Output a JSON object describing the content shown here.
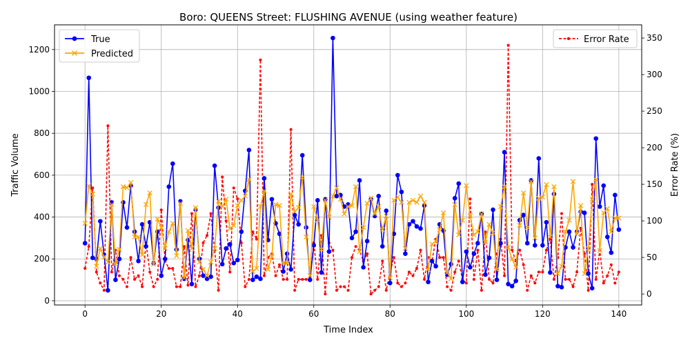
{
  "chart_data": {
    "type": "line",
    "title": "Boro: QUEENS Street: FLUSHING AVENUE (using weather feature)",
    "xlabel": "Time Index",
    "ylabel": "Traffic Volume",
    "y2label": "Error Rate (%)",
    "xlim": [
      -8,
      146
    ],
    "ylim": [
      -20,
      1318
    ],
    "y2lim": [
      -15,
      368
    ],
    "xticks": [
      0,
      20,
      40,
      60,
      80,
      100,
      120,
      140
    ],
    "yticks": [
      0,
      200,
      400,
      600,
      800,
      1000,
      1200
    ],
    "y2ticks": [
      0,
      50,
      100,
      150,
      200,
      250,
      300,
      350
    ],
    "grid": true,
    "legend_left_position": "upper-left",
    "legend_right_position": "upper-right",
    "series": [
      {
        "name": "True",
        "axis": "left",
        "color": "#0000ff",
        "marker": "circle",
        "values": [
          275,
          1065,
          205,
          200,
          380,
          220,
          50,
          470,
          100,
          200,
          470,
          350,
          550,
          330,
          190,
          365,
          260,
          375,
          180,
          330,
          120,
          200,
          545,
          655,
          245,
          475,
          105,
          290,
          80,
          435,
          200,
          120,
          105,
          115,
          645,
          445,
          175,
          250,
          270,
          180,
          195,
          330,
          525,
          720,
          100,
          115,
          105,
          585,
          290,
          485,
          370,
          320,
          140,
          225,
          150,
          410,
          365,
          695,
          350,
          100,
          265,
          480,
          135,
          485,
          235,
          1255,
          500,
          505,
          450,
          460,
          300,
          330,
          575,
          160,
          285,
          485,
          405,
          500,
          260,
          430,
          85,
          320,
          600,
          520,
          225,
          365,
          380,
          355,
          345,
          455,
          90,
          190,
          165,
          365,
          335,
          125,
          175,
          490,
          560,
          90,
          235,
          160,
          225,
          275,
          415,
          125,
          205,
          435,
          100,
          275,
          710,
          80,
          70,
          95,
          385,
          410,
          275,
          575,
          265,
          680,
          265,
          375,
          135,
          510,
          70,
          65,
          255,
          330,
          255,
          330,
          425,
          420,
          130,
          60,
          775,
          450,
          550,
          305,
          230,
          505,
          340
        ]
      },
      {
        "name": "Predicted",
        "axis": "left",
        "color": "#ffa500",
        "marker": "x",
        "values": [
          370,
          550,
          510,
          165,
          250,
          210,
          185,
          460,
          175,
          245,
          545,
          540,
          565,
          305,
          305,
          220,
          460,
          515,
          175,
          390,
          350,
          250,
          330,
          370,
          215,
          465,
          110,
          335,
          250,
          445,
          185,
          150,
          120,
          185,
          250,
          475,
          450,
          485,
          345,
          360,
          455,
          480,
          500,
          580,
          140,
          155,
          450,
          525,
          150,
          210,
          460,
          455,
          180,
          180,
          510,
          425,
          445,
          590,
          305,
          120,
          450,
          385,
          245,
          480,
          400,
          500,
          540,
          485,
          415,
          450,
          455,
          545,
          235,
          350,
          465,
          490,
          415,
          450,
          340,
          405,
          110,
          480,
          495,
          470,
          250,
          470,
          480,
          470,
          500,
          470,
          150,
          270,
          285,
          340,
          420,
          135,
          105,
          460,
          315,
          385,
          550,
          405,
          315,
          330,
          415,
          280,
          365,
          325,
          150,
          450,
          545,
          255,
          200,
          160,
          360,
          515,
          350,
          570,
          300,
          490,
          495,
          555,
          305,
          545,
          130,
          165,
          330,
          385,
          570,
          320,
          455,
          130,
          250,
          485,
          580,
          240,
          420,
          440,
          330,
          395,
          395
        ]
      },
      {
        "name": "Error Rate",
        "axis": "right",
        "color": "#ff0000",
        "marker": "dot",
        "values": [
          35,
          65,
          145,
          30,
          15,
          5,
          230,
          30,
          60,
          25,
          20,
          10,
          50,
          20,
          25,
          10,
          70,
          30,
          10,
          20,
          115,
          45,
          35,
          35,
          10,
          10,
          65,
          12,
          110,
          10,
          25,
          70,
          80,
          110,
          60,
          5,
          160,
          100,
          30,
          145,
          130,
          70,
          10,
          20,
          85,
          75,
          320,
          25,
          50,
          55,
          25,
          40,
          20,
          20,
          225,
          5,
          20,
          20,
          20,
          20,
          70,
          20,
          80,
          0,
          70,
          60,
          5,
          10,
          10,
          5,
          50,
          65,
          60,
          45,
          55,
          0,
          5,
          10,
          45,
          5,
          30,
          50,
          15,
          10,
          15,
          30,
          25,
          35,
          60,
          20,
          50,
          45,
          75,
          50,
          50,
          10,
          5,
          30,
          45,
          20,
          15,
          130,
          20,
          60,
          5,
          85,
          20,
          15,
          55,
          75,
          25,
          340,
          60,
          45,
          60,
          40,
          5,
          25,
          15,
          30,
          30,
          60,
          75,
          20,
          50,
          110,
          20,
          20,
          10,
          30,
          90,
          55,
          5,
          150,
          20,
          60,
          15,
          25,
          40,
          15,
          30
        ]
      }
    ]
  }
}
